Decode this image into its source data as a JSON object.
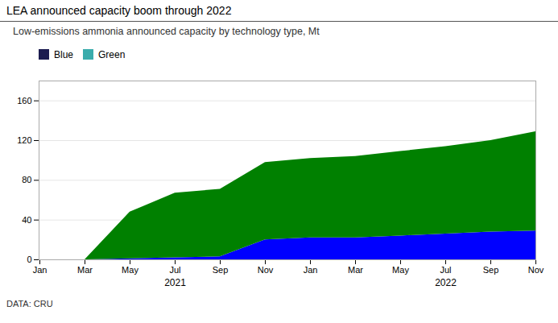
{
  "chart_data": {
    "type": "area",
    "title": "LEA announced capacity boom through 2022",
    "subtitle": "Low-emissions ammonia announced capacity by technology type, Mt",
    "source": "DATA: CRU",
    "categories": [
      "Jan",
      "Mar",
      "May",
      "Jul",
      "Sep",
      "Nov",
      "Jan",
      "Mar",
      "May",
      "Jul",
      "Sep",
      "Nov"
    ],
    "series": [
      {
        "name": "Blue",
        "color": "#1c1c50",
        "values": [
          0,
          0,
          1,
          2,
          3,
          20,
          22,
          22,
          24,
          26,
          28,
          29
        ]
      },
      {
        "name": "Green",
        "color": "#3aacac",
        "values": [
          0,
          0,
          47,
          65,
          68,
          78,
          80,
          82,
          85,
          88,
          92,
          100
        ]
      }
    ],
    "stacked": true,
    "ylim": [
      0,
      180
    ],
    "yticks": [
      0,
      40,
      80,
      120,
      160
    ],
    "grid": true,
    "legend": "top",
    "annotations": [
      {
        "text": "2021",
        "x": 3
      },
      {
        "text": "2022",
        "x": 9
      }
    ]
  }
}
